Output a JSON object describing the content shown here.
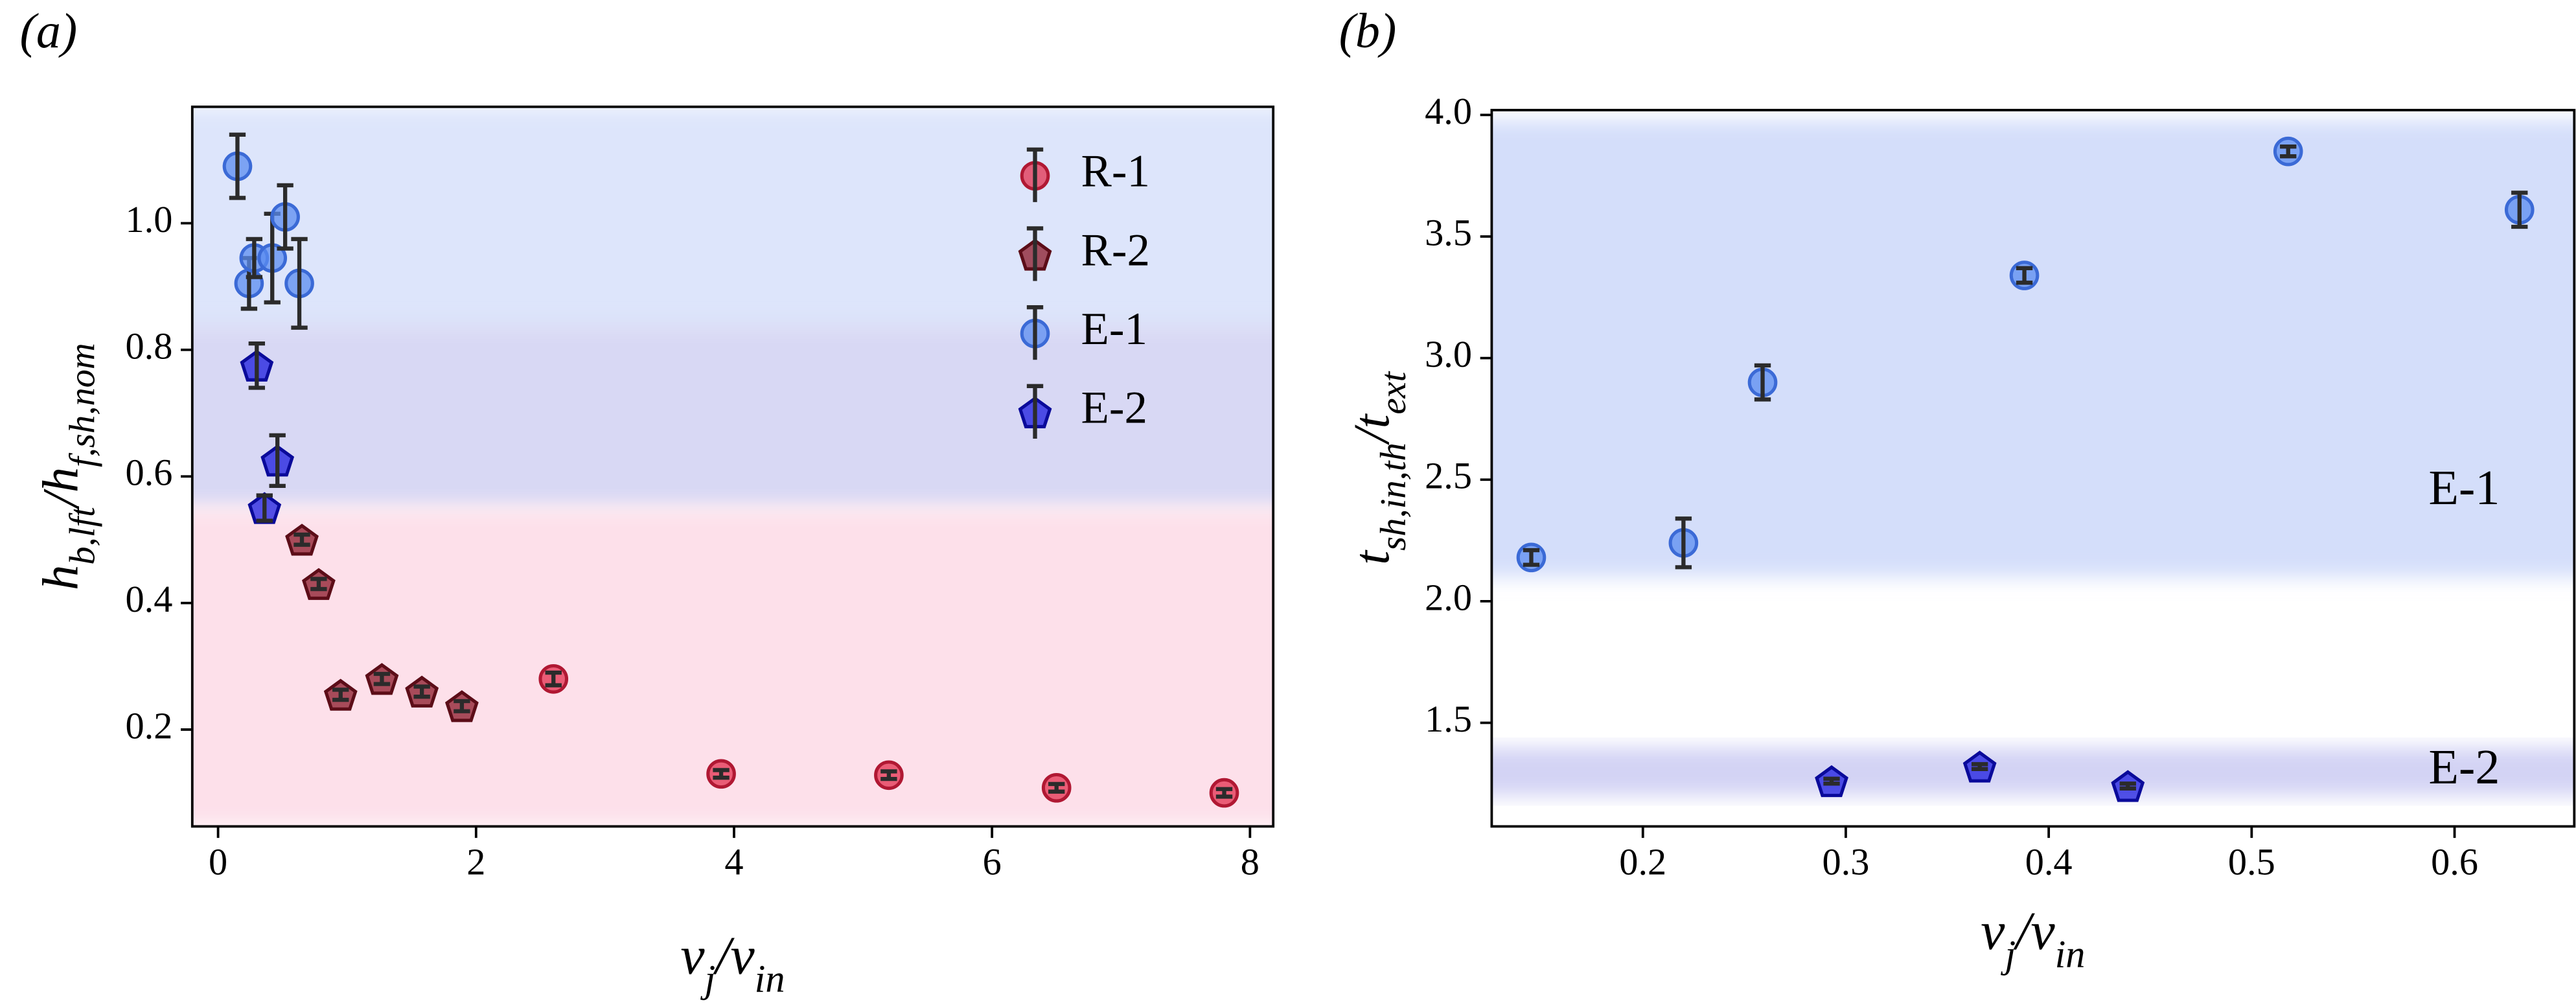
{
  "chart_data": [
    {
      "type": "scatter",
      "panel_label": "(a)",
      "xlabel": [
        {
          "text": "v"
        },
        {
          "text": "j",
          "sub": true
        },
        {
          "text": "/v"
        },
        {
          "text": "in",
          "sub": true
        }
      ],
      "ylabel": [
        {
          "text": "h"
        },
        {
          "text": "b,lft",
          "sub": true
        },
        {
          "text": "/h"
        },
        {
          "text": "f,sh,nom",
          "sub": true
        }
      ],
      "xlim": [
        -0.2,
        8.18
      ],
      "ylim": [
        0.047,
        1.184
      ],
      "xticks": [
        0,
        2,
        4,
        6,
        8
      ],
      "yticks": [
        0.2,
        0.4,
        0.6,
        0.8,
        {
          "value": 1,
          "label": "1.0"
        }
      ],
      "legend": "upper right",
      "bands": [
        {
          "y": [
            0.82,
            1.184
          ],
          "color": "#dde5fb"
        },
        {
          "y": [
            0.55,
            0.84
          ],
          "color": "#d8d8f4"
        },
        {
          "y": [
            0.047,
            0.55
          ],
          "color": "#fde0ea"
        }
      ],
      "series": [
        {
          "name": "R-1",
          "marker": "circle",
          "color": "#e3304f",
          "edge": "#b01833",
          "x": [
            2.6,
            3.9,
            5.2,
            6.5,
            7.8
          ],
          "values": [
            0.28,
            0.13,
            0.128,
            0.108,
            0.1
          ],
          "errors": [
            0.01,
            0.006,
            0.006,
            0.006,
            0.006
          ]
        },
        {
          "name": "R-2",
          "marker": "pentagon",
          "color": "#8b1a2a",
          "edge": "#5c0d18",
          "x": [
            0.65,
            0.78,
            0.95,
            1.27,
            1.58,
            1.89
          ],
          "values": [
            0.5,
            0.43,
            0.255,
            0.28,
            0.26,
            0.237
          ],
          "errors": [
            0.008,
            0.008,
            0.008,
            0.008,
            0.008,
            0.008
          ]
        },
        {
          "name": "E-1",
          "marker": "circle",
          "color": "#5b8cf0",
          "edge": "#3b6ad6",
          "x": [
            0.15,
            0.24,
            0.28,
            0.42,
            0.52,
            0.63
          ],
          "values": [
            1.09,
            0.905,
            0.945,
            0.945,
            1.01,
            0.905
          ],
          "errors": [
            0.05,
            0.04,
            0.03,
            0.07,
            0.05,
            0.07
          ]
        },
        {
          "name": "E-2",
          "marker": "pentagon",
          "color": "#1c1ce0",
          "edge": "#0a0a9a",
          "x": [
            0.3,
            0.36,
            0.46
          ],
          "values": [
            0.775,
            0.55,
            0.625
          ],
          "errors": [
            0.035,
            0.02,
            0.04
          ]
        }
      ]
    },
    {
      "type": "scatter",
      "panel_label": "(b)",
      "xlabel": [
        {
          "text": "v"
        },
        {
          "text": "j",
          "sub": true
        },
        {
          "text": "/v"
        },
        {
          "text": "in",
          "sub": true
        }
      ],
      "ylabel": [
        {
          "text": "t"
        },
        {
          "text": "sh,in,th",
          "sub": true
        },
        {
          "text": "/t"
        },
        {
          "text": "ext",
          "sub": true
        }
      ],
      "xlim": [
        0.1255,
        0.659
      ],
      "ylim": [
        1.074,
        4.02
      ],
      "xticks": [
        0.2,
        0.3,
        0.4,
        0.5,
        0.6
      ],
      "yticks": [
        1.5,
        {
          "value": 2,
          "label": "2.0"
        },
        2.5,
        {
          "value": 3,
          "label": "3.0"
        },
        3.5,
        {
          "value": 4,
          "label": "4.0"
        }
      ],
      "bands": [
        {
          "y": [
            2.1,
            3.98
          ],
          "color": "#d4defa"
        },
        {
          "y": [
            1.2,
            1.4
          ],
          "color": "#d3d3f4"
        }
      ],
      "annotations": [
        {
          "text": "E-1"
        },
        {
          "text": "E-2"
        }
      ],
      "series": [
        {
          "marker": "circle",
          "color": "#5b8cf0",
          "edge": "#3b6ad6",
          "x": [
            0.145,
            0.22,
            0.259,
            0.388,
            0.518,
            0.632
          ],
          "values": [
            2.18,
            2.24,
            2.9,
            3.34,
            3.85,
            3.61
          ],
          "errors": [
            0.03,
            0.1,
            0.07,
            0.03,
            0.02,
            0.07
          ]
        },
        {
          "marker": "pentagon",
          "color": "#1c1ce0",
          "edge": "#0a0a9a",
          "x": [
            0.293,
            0.366,
            0.439
          ],
          "values": [
            1.26,
            1.32,
            1.24
          ],
          "errors": [
            0.01,
            0.01,
            0.01
          ]
        }
      ]
    }
  ]
}
